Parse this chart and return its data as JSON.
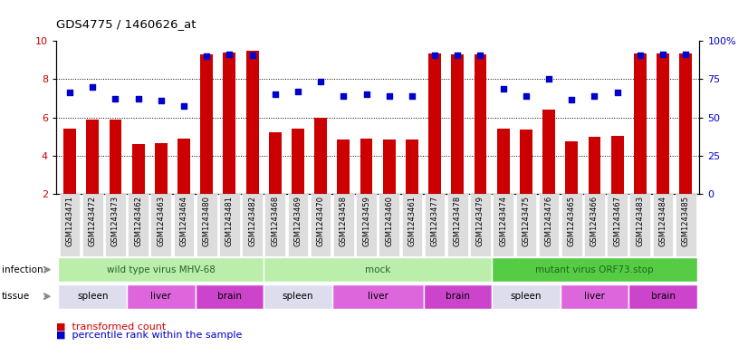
{
  "title": "GDS4775 / 1460626_at",
  "samples": [
    "GSM1243471",
    "GSM1243472",
    "GSM1243473",
    "GSM1243462",
    "GSM1243463",
    "GSM1243464",
    "GSM1243480",
    "GSM1243481",
    "GSM1243482",
    "GSM1243468",
    "GSM1243469",
    "GSM1243470",
    "GSM1243458",
    "GSM1243459",
    "GSM1243460",
    "GSM1243461",
    "GSM1243477",
    "GSM1243478",
    "GSM1243479",
    "GSM1243474",
    "GSM1243475",
    "GSM1243476",
    "GSM1243465",
    "GSM1243466",
    "GSM1243467",
    "GSM1243483",
    "GSM1243484",
    "GSM1243485"
  ],
  "bar_values": [
    5.4,
    5.9,
    5.9,
    4.6,
    4.65,
    4.9,
    9.3,
    9.4,
    9.5,
    5.25,
    5.4,
    6.0,
    4.85,
    4.9,
    4.85,
    4.85,
    9.35,
    9.3,
    9.3,
    5.4,
    5.35,
    6.4,
    4.75,
    5.0,
    5.05,
    9.35,
    9.35,
    9.35
  ],
  "dot_values": [
    7.3,
    7.6,
    7.0,
    7.0,
    6.9,
    6.6,
    9.2,
    9.3,
    9.25,
    7.2,
    7.35,
    7.9,
    7.1,
    7.2,
    7.1,
    7.1,
    9.25,
    9.25,
    9.25,
    7.5,
    7.1,
    8.0,
    6.95,
    7.1,
    7.3,
    9.25,
    9.3,
    9.3
  ],
  "ymin": 2,
  "ymax": 10,
  "yticks": [
    2,
    4,
    6,
    8,
    10
  ],
  "y2ticks": [
    0,
    25,
    50,
    75,
    100
  ],
  "bar_color": "#cc0000",
  "dot_color": "#0000cc",
  "infection_groups": [
    {
      "label": "wild type virus MHV-68",
      "start": 0,
      "end": 9,
      "color": "#bbeeaa"
    },
    {
      "label": "mock",
      "start": 9,
      "end": 19,
      "color": "#bbeeaa"
    },
    {
      "label": "mutant virus ORF73.stop",
      "start": 19,
      "end": 28,
      "color": "#55cc44"
    }
  ],
  "tissue_groups": [
    {
      "label": "spleen",
      "start": 0,
      "end": 3,
      "color": "#eeaaee"
    },
    {
      "label": "liver",
      "start": 3,
      "end": 6,
      "color": "#dd66dd"
    },
    {
      "label": "brain",
      "start": 6,
      "end": 9,
      "color": "#dd66dd"
    },
    {
      "label": "spleen",
      "start": 9,
      "end": 12,
      "color": "#eeaaee"
    },
    {
      "label": "liver",
      "start": 12,
      "end": 16,
      "color": "#dd66dd"
    },
    {
      "label": "brain",
      "start": 16,
      "end": 19,
      "color": "#dd66dd"
    },
    {
      "label": "spleen",
      "start": 19,
      "end": 22,
      "color": "#eeaaee"
    },
    {
      "label": "liver",
      "start": 22,
      "end": 25,
      "color": "#dd66dd"
    },
    {
      "label": "brain",
      "start": 25,
      "end": 28,
      "color": "#dd66dd"
    }
  ],
  "infection_label_color": "#226622",
  "spleen_color": "#ddddee",
  "liver_color": "#dd66dd",
  "brain_color": "#cc44cc",
  "arrow_color": "#888888",
  "xlabel_fontsize": 6.0,
  "xtick_bg": "#dddddd"
}
